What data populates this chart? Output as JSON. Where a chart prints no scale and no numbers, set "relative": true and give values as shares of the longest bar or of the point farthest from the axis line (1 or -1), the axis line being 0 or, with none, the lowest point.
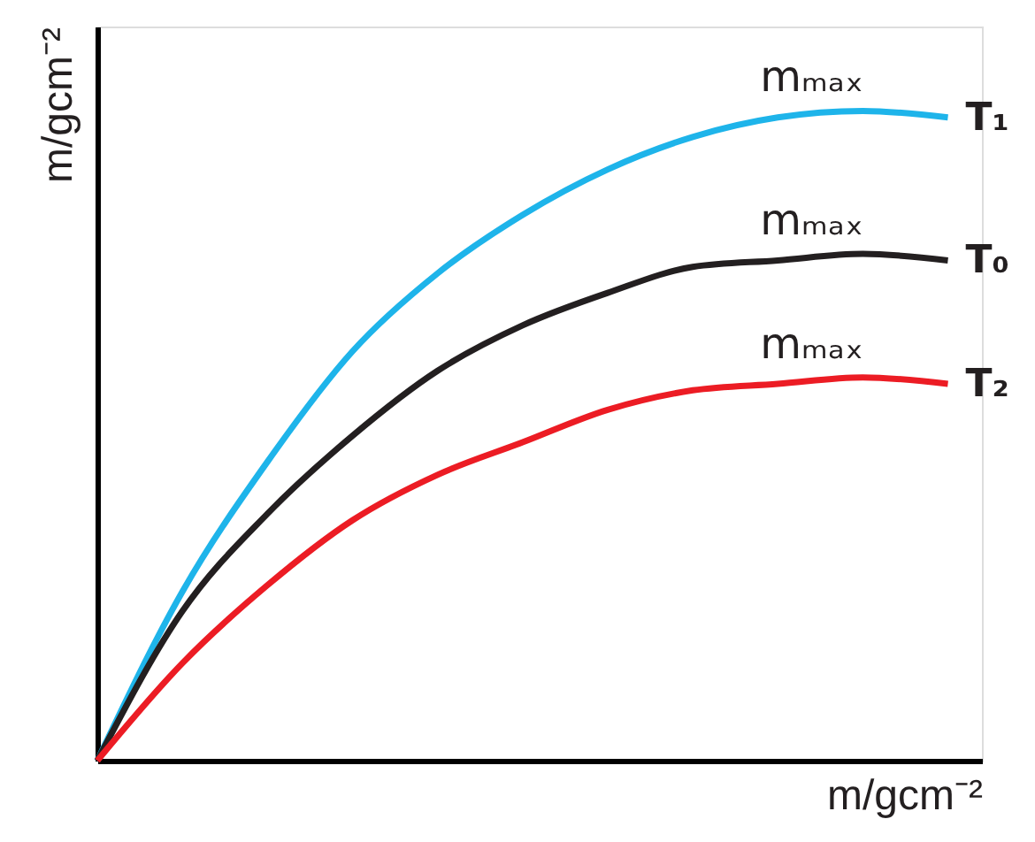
{
  "chart_data": {
    "type": "line",
    "relative": true,
    "xlabel": "m/gcm⁻²",
    "ylabel": "m/gcm⁻²",
    "categories": [
      null,
      null,
      null,
      null,
      null,
      null,
      null,
      null,
      null,
      null,
      null
    ],
    "series": [
      {
        "name": "T₁",
        "color": "#1eb4ea",
        "values": [
          0,
          0.26,
          0.46,
          0.63,
          0.75,
          0.84,
          0.91,
          0.96,
          0.99,
          1,
          0.99
        ]
      },
      {
        "name": "T₀",
        "color": "#231f20",
        "values": [
          0,
          0.23,
          0.38,
          0.5,
          0.6,
          0.67,
          0.72,
          0.76,
          0.77,
          0.78,
          0.77
        ]
      },
      {
        "name": "T₂",
        "color": "#ec1c24",
        "values": [
          0,
          0.15,
          0.27,
          0.37,
          0.44,
          0.49,
          0.54,
          0.57,
          0.58,
          0.59,
          0.58
        ]
      }
    ],
    "annotations": [
      "mₘₐₓ",
      "mₘₐₓ",
      "mₘₐₓ"
    ]
  }
}
